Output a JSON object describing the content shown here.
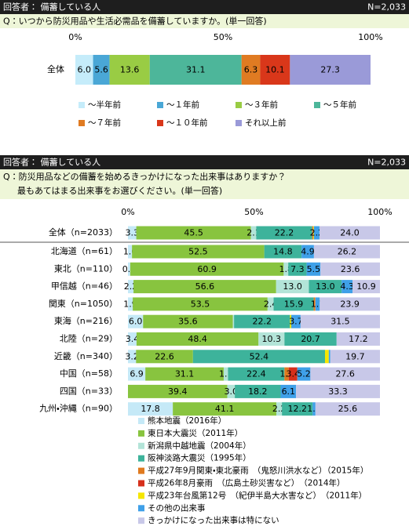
{
  "chart_data": [
    {
      "type": "bar",
      "orientation": "horizontal",
      "stacked": true,
      "respondent": "回答者： 備蓄している人",
      "n": "N=2,033",
      "question": [
        "Q：いつから防災用品や生活必需品を備蓄していますか。(単一回答)"
      ],
      "xlim": [
        0,
        100
      ],
      "xticks": [
        {
          "value": 0,
          "label": "0%"
        },
        {
          "value": 50,
          "label": "50%"
        },
        {
          "value": 100,
          "label": "100%"
        }
      ],
      "legend": "bottom-grid",
      "categories": [
        "全体"
      ],
      "series": [
        {
          "name": "～半年前",
          "color": "#c5ecfa",
          "values": [
            6.0
          ],
          "value_labels": [
            "6.0"
          ]
        },
        {
          "name": "～１年前",
          "color": "#4aa7d6",
          "values": [
            5.6
          ],
          "value_labels": [
            "5.6"
          ]
        },
        {
          "name": "～３年前",
          "color": "#99cc44",
          "values": [
            13.6
          ],
          "value_labels": [
            "13.6"
          ]
        },
        {
          "name": "～５年前",
          "color": "#4db69a",
          "values": [
            31.1
          ],
          "value_labels": [
            "31.1"
          ]
        },
        {
          "name": "～７年前",
          "color": "#e07b22",
          "values": [
            6.3
          ],
          "value_labels": [
            "6.3"
          ]
        },
        {
          "name": "～１０年前",
          "color": "#d9371a",
          "values": [
            10.1
          ],
          "value_labels": [
            "10.1"
          ]
        },
        {
          "name": "それ以上前",
          "color": "#9a9ad8",
          "values": [
            27.3
          ],
          "value_labels": [
            "27.3"
          ]
        }
      ]
    },
    {
      "type": "bar",
      "orientation": "horizontal",
      "stacked": true,
      "respondent": "回答者： 備蓄している人",
      "n": "N=2,033",
      "question": [
        "Q：防災用品などの備蓄を始めるきっかけになった出来事はありますか？",
        "最もあてはまる出来事をお選びください。(単一回答)"
      ],
      "xlim": [
        0,
        100
      ],
      "xticks": [
        {
          "value": 0,
          "label": "0%"
        },
        {
          "value": 50,
          "label": "50%"
        },
        {
          "value": 100,
          "label": "100%"
        }
      ],
      "legend": "bottom-list",
      "categories": [
        "全体（n=2033）",
        "北海道（n=61）",
        "東北（n=110）",
        "甲信越（n=46）",
        "関東（n=1050）",
        "東海（n=216）",
        "北陸（n=29）",
        "近畿（n=340）",
        "中国（n=58）",
        "四国（n=33）",
        "九州・沖縄（n=90）"
      ],
      "series": [
        {
          "name": "熊本地震（2016年）",
          "color": "#c5e9f7",
          "values": [
            3.3,
            1.6,
            0.9,
            2.2,
            1.9,
            6.0,
            3.4,
            3.2,
            6.9,
            0,
            17.8
          ],
          "value_labels": [
            "3.3",
            "1.6",
            "0.9",
            "2.2",
            "1.9",
            "6.0",
            "3.4",
            "3.2",
            "6.9",
            null,
            "17.8"
          ]
        },
        {
          "name": "東日本大震災（2011年）",
          "color": "#88c43f",
          "values": [
            45.5,
            52.5,
            60.9,
            56.6,
            53.5,
            35.6,
            48.4,
            22.6,
            31.1,
            39.4,
            41.1
          ],
          "value_labels": [
            "45.5",
            "52.5",
            "60.9",
            "56.6",
            "53.5",
            "35.6",
            "48.4",
            "22.6",
            "31.1",
            "39.4",
            "41.1"
          ]
        },
        {
          "name": "新潟県中越地震（2004年）",
          "color": "#b3e4d8",
          "values": [
            2.1,
            0,
            1.8,
            13.0,
            2.4,
            0.5,
            10.3,
            0,
            1.7,
            3.0,
            2.2
          ],
          "value_labels": [
            "2.1",
            null,
            "1.8",
            "13.0",
            "2.4",
            null,
            "10.3",
            null,
            "1.7",
            "3.0",
            "2.2"
          ]
        },
        {
          "name": "阪神淡路大震災（1995年）",
          "color": "#3db39b",
          "values": [
            22.2,
            14.8,
            7.3,
            13.0,
            15.9,
            22.2,
            20.7,
            52.4,
            22.4,
            18.2,
            12.2
          ],
          "value_labels": [
            "22.2",
            "14.8",
            "7.3",
            "13.0",
            "15.9",
            "22.2",
            "20.7",
            "52.4",
            "22.4",
            "18.2",
            "12.2"
          ]
        },
        {
          "name": "平成27年9月関東・東北豪雨　（鬼怒川洪水など）（2015年）",
          "color": "#e07a1f",
          "values": [
            0.3,
            0,
            0,
            0,
            0.5,
            0,
            0,
            0,
            1.7,
            0,
            0
          ],
          "value_labels": [
            null,
            null,
            null,
            null,
            null,
            null,
            null,
            null,
            "1.7",
            null,
            null
          ]
        },
        {
          "name": "平成26年8月豪雨　（広島土砂災害など）　（2014年）",
          "color": "#d6301c",
          "values": [
            0.1,
            0,
            0,
            0,
            0.1,
            0,
            0,
            0,
            3.4,
            0,
            0
          ],
          "value_labels": [
            null,
            null,
            null,
            null,
            null,
            null,
            null,
            null,
            "3.4",
            null,
            null
          ]
        },
        {
          "name": "平成23年台風第12号　（紀伊半島大水害など）　（2011年）",
          "color": "#f5e600",
          "values": [
            0.3,
            0,
            0,
            0,
            0.1,
            0.5,
            0,
            1.5,
            0,
            0,
            0
          ],
          "value_labels": [
            null,
            null,
            null,
            null,
            null,
            null,
            null,
            null,
            null,
            null,
            null
          ]
        },
        {
          "name": "その他の出来事",
          "color": "#3fa0e8",
          "values": [
            2.2,
            4.9,
            5.5,
            4.3,
            1.7,
            3.7,
            0,
            0.6,
            5.2,
            6.1,
            1.1
          ],
          "value_labels": [
            "2.2",
            "4.9",
            "5.5",
            "4.3",
            "1.7",
            "3.7",
            null,
            null,
            "5.2",
            "6.1",
            "1.1"
          ]
        },
        {
          "name": "きっかけになった出来事は特にない",
          "color": "#c8c8e8",
          "values": [
            24.0,
            26.2,
            23.6,
            10.9,
            23.9,
            31.5,
            17.2,
            19.7,
            27.6,
            33.3,
            25.6
          ],
          "value_labels": [
            "24.0",
            "26.2",
            "23.6",
            "10.9",
            "23.9",
            "31.5",
            "17.2",
            "19.7",
            "27.6",
            "33.3",
            "25.6"
          ]
        }
      ]
    }
  ]
}
